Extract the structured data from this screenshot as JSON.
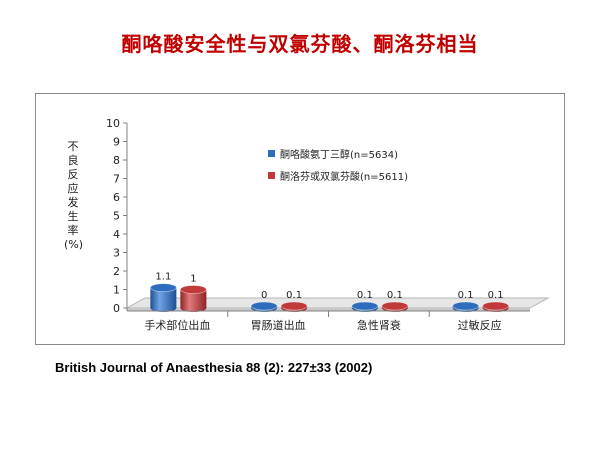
{
  "title": "酮咯酸安全性与双氯芬酸、酮洛芬相当",
  "citation": "British Journal of Anaesthesia 88 (2): 227±33 (2002)",
  "colors": {
    "series1": "#2e6dbe",
    "series2": "#c0393b",
    "title": "#c00000"
  },
  "chart_data": {
    "type": "bar",
    "categories": [
      "手术部位出血",
      "胃肠道出血",
      "急性肾衰",
      "过敏反应"
    ],
    "series": [
      {
        "name": "酮咯酸氨丁三醇(n=5634)",
        "values": [
          1.1,
          0,
          0.1,
          0.1
        ],
        "labels": [
          "1.1",
          "0",
          "0.1",
          "0.1"
        ]
      },
      {
        "name": "酮洛芬或双氯芬酸(n=5611)",
        "values": [
          1,
          0.1,
          0.1,
          0.1
        ],
        "labels": [
          "1",
          "0.1",
          "0.1",
          "0.1"
        ]
      }
    ],
    "ylabel": "不良反应发生率 (%)",
    "ylim": [
      0,
      10
    ],
    "yticks": [
      "0",
      "1",
      "2",
      "3",
      "4",
      "5",
      "6",
      "7",
      "8",
      "9",
      "10"
    ],
    "legend_position": "top-right",
    "grid": false
  }
}
